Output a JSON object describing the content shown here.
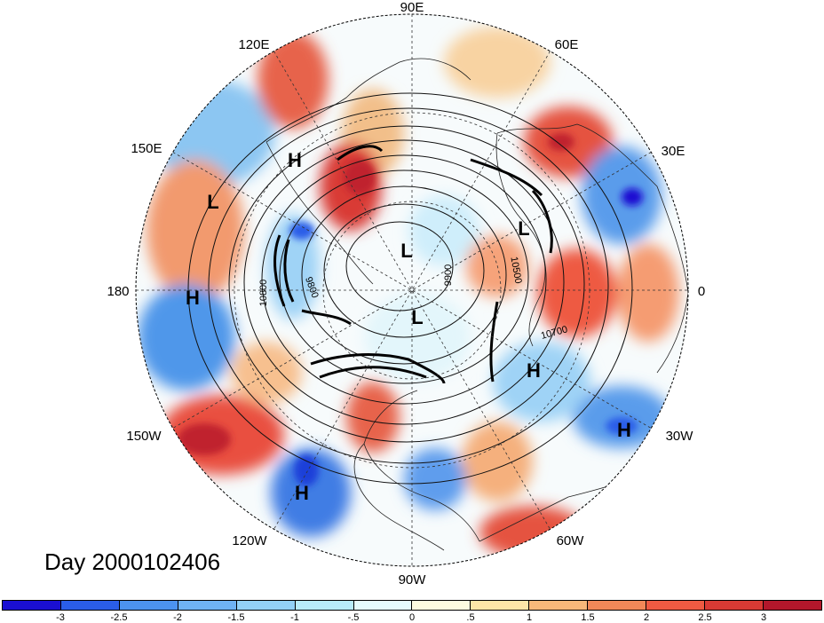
{
  "title": "Day 2000102406",
  "longitude_labels": {
    "lon_90e": "90E",
    "lon_60e": "60E",
    "lon_30e": "30E",
    "lon_0": "0",
    "lon_30w": "30W",
    "lon_60w": "60W",
    "lon_90w": "90W",
    "lon_120w": "120W",
    "lon_150w": "150W",
    "lon_180": "180",
    "lon_150e": "150E",
    "lon_120e": "120E"
  },
  "pressure_centers": [
    {
      "label": "H",
      "lon": -177
    },
    {
      "label": "L",
      "lon": 153
    },
    {
      "label": "H",
      "lon": 128
    },
    {
      "label": "L",
      "lon": 104
    },
    {
      "label": "L",
      "lon": 25
    },
    {
      "label": "H",
      "lon": -40
    },
    {
      "label": "H",
      "lon": -28
    },
    {
      "label": "H",
      "lon": -132
    },
    {
      "label": "L",
      "lon": -100
    }
  ],
  "contour_labels": [
    "10800",
    "9800",
    "9900",
    "10500",
    "10700"
  ],
  "colorbar": {
    "colors": [
      "#1a0fd2",
      "#2a5de8",
      "#4c93ef",
      "#6fb2f3",
      "#93d1f7",
      "#b8ebfa",
      "#e6fbfd",
      "#fdfbe0",
      "#fde6a8",
      "#f8b87a",
      "#f28858",
      "#ee5a42",
      "#d93a34",
      "#b2172b"
    ],
    "ticks": [
      "-3",
      "-2.5",
      "-2",
      "-1.5",
      "-1",
      "-.5",
      "0",
      ".5",
      "1",
      "1.5",
      "2",
      "2.5",
      "3"
    ]
  }
}
